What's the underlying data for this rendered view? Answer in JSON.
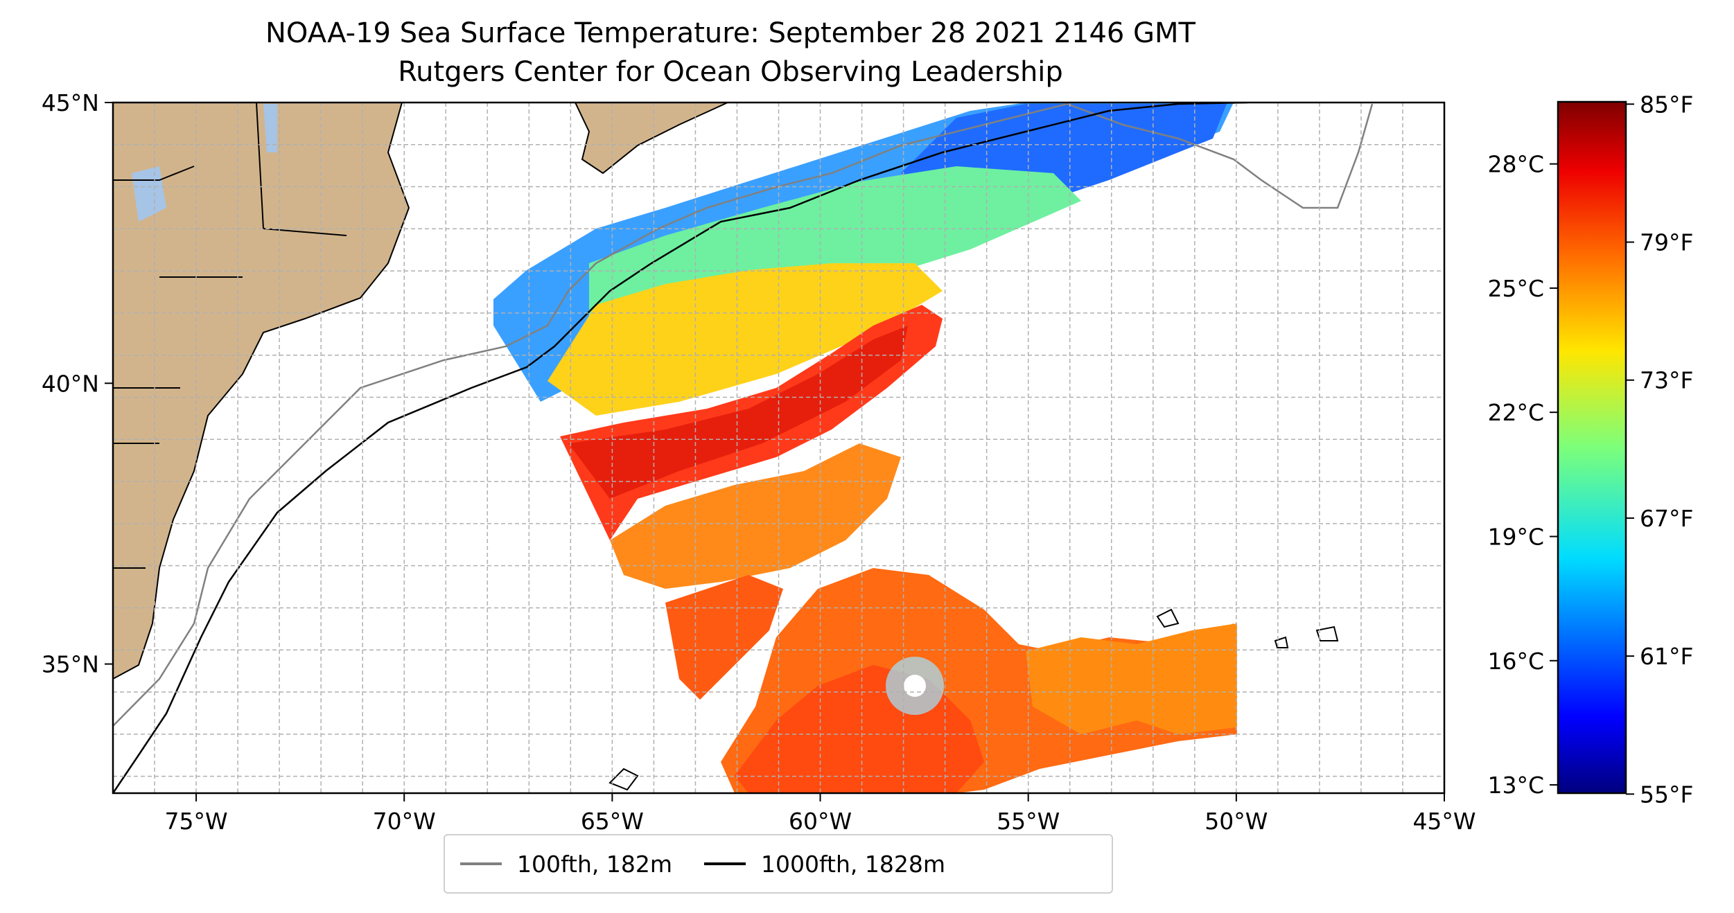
{
  "title": {
    "line1": "NOAA-19 Sea Surface Temperature: September 28 2021 2146 GMT",
    "line2": "Rutgers Center for Ocean Observing Leadership"
  },
  "map": {
    "lon_range": [
      -77,
      -45
    ],
    "lat_range": [
      32.7,
      45
    ],
    "x_ticks": [
      {
        "lon": -75,
        "label": "75°W"
      },
      {
        "lon": -70,
        "label": "70°W"
      },
      {
        "lon": -65,
        "label": "65°W"
      },
      {
        "lon": -60,
        "label": "60°W"
      },
      {
        "lon": -55,
        "label": "55°W"
      },
      {
        "lon": -50,
        "label": "50°W"
      },
      {
        "lon": -45,
        "label": "45°W"
      }
    ],
    "y_ticks": [
      {
        "lat": 45,
        "label": "45°N"
      },
      {
        "lat": 40,
        "label": "40°N"
      },
      {
        "lat": 35,
        "label": "35°N"
      }
    ],
    "grid": true,
    "land_color": "#d2b48c",
    "water_color": "#a6c4e6"
  },
  "colorbar": {
    "range_c": [
      12.8,
      29.5
    ],
    "celsius_ticks": [
      {
        "value": 13,
        "label": "13°C"
      },
      {
        "value": 16,
        "label": "16°C"
      },
      {
        "value": 19,
        "label": "19°C"
      },
      {
        "value": 22,
        "label": "22°C"
      },
      {
        "value": 25,
        "label": "25°C"
      },
      {
        "value": 28,
        "label": "28°C"
      }
    ],
    "fahrenheit_ticks": [
      {
        "value": 55,
        "label": "55°F"
      },
      {
        "value": 61,
        "label": "61°F"
      },
      {
        "value": 67,
        "label": "67°F"
      },
      {
        "value": 73,
        "label": "73°F"
      },
      {
        "value": 79,
        "label": "79°F"
      },
      {
        "value": 85,
        "label": "85°F"
      }
    ],
    "colormap": "jet"
  },
  "legend": {
    "placement": "bottom-center",
    "entries": [
      {
        "label": "100fth, 182m",
        "color": "#808080"
      },
      {
        "label": "1000fth, 1828m",
        "color": "#000000"
      }
    ]
  }
}
